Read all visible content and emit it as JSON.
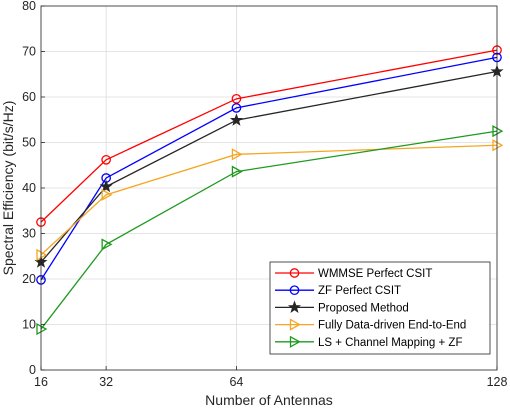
{
  "chart_data": {
    "type": "line",
    "title": "",
    "xlabel": "Number of Antennas",
    "ylabel": "Spectral Efficiency (bit/s/Hz)",
    "x": [
      16,
      32,
      64,
      128
    ],
    "x_ticks": [
      "16",
      "32",
      "64",
      "128"
    ],
    "xlim": [
      16,
      128
    ],
    "ylim": [
      0,
      80
    ],
    "y_ticks": [
      "0",
      "10",
      "20",
      "30",
      "40",
      "50",
      "60",
      "70",
      "80"
    ],
    "grid": true,
    "legend_position": "bottom-right",
    "series": [
      {
        "name": "WMMSE Perfect CSIT",
        "color": "#ff0000",
        "marker": "circle",
        "values": [
          32.5,
          46.2,
          59.6,
          70.3
        ]
      },
      {
        "name": "ZF Perfect CSIT",
        "color": "#0000ff",
        "marker": "circle",
        "values": [
          19.8,
          42.2,
          57.6,
          68.7
        ]
      },
      {
        "name": "Proposed Method",
        "color": "#262626",
        "marker": "star",
        "values": [
          23.7,
          40.3,
          54.9,
          65.6
        ]
      },
      {
        "name": "Fully Data-driven End-to-End",
        "color": "#f5a623",
        "marker": "triangle-right",
        "values": [
          25.3,
          38.5,
          47.4,
          49.4
        ]
      },
      {
        "name": "LS + Channel Mapping + ZF",
        "color": "#1f9a1f",
        "marker": "triangle-right",
        "values": [
          9.0,
          27.6,
          43.6,
          52.5
        ]
      }
    ]
  }
}
